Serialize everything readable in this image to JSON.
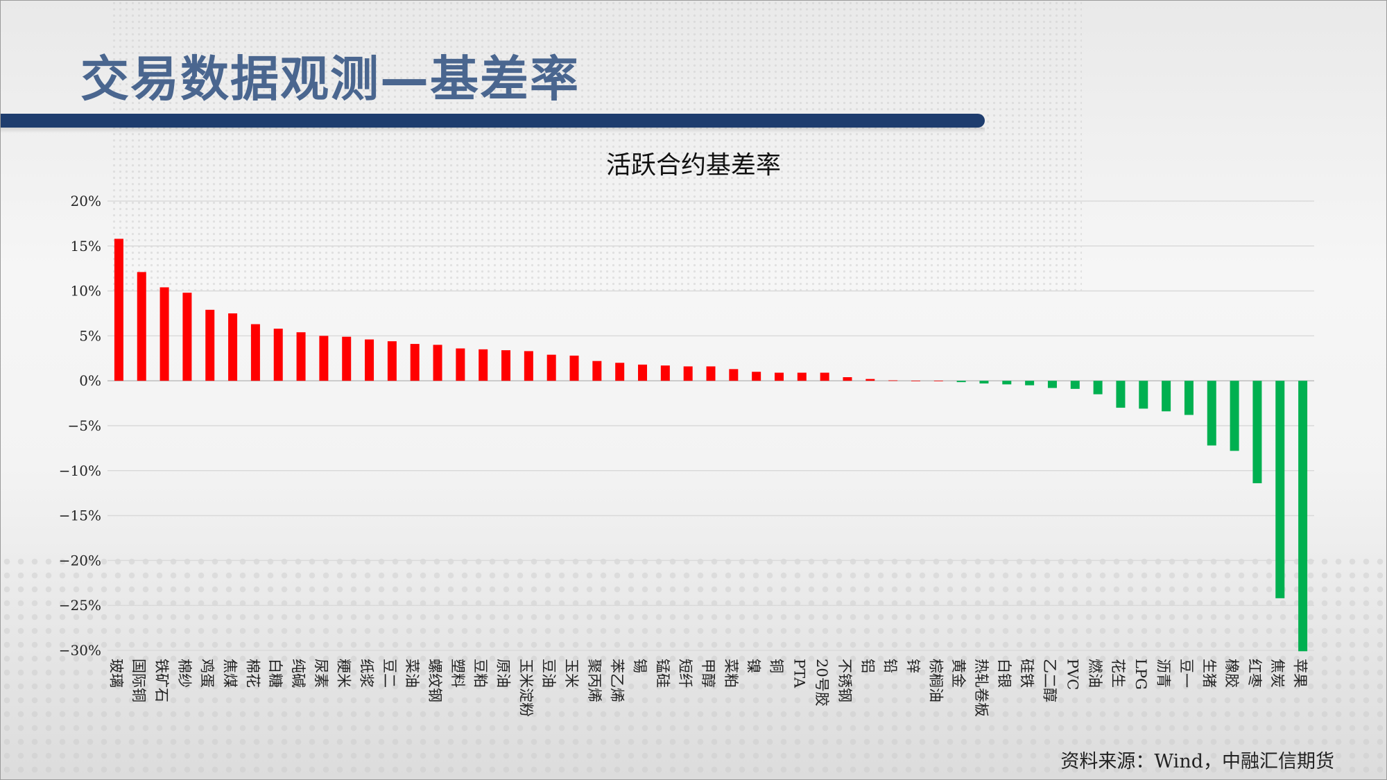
{
  "header": {
    "title": "交易数据观测—基差率"
  },
  "source": "资料来源：Wind，中融汇信期货",
  "colors": {
    "positive": "#ff0000",
    "negative": "#00b050",
    "title": "#4a668f",
    "bar": "#1e3d6e"
  },
  "chart_data": {
    "type": "bar",
    "title": "活跃合约基差率",
    "xlabel": "",
    "ylabel": "",
    "ylim": [
      -30,
      20
    ],
    "yticks": [
      20,
      15,
      10,
      5,
      0,
      -5,
      -10,
      -15,
      -20,
      -25,
      -30
    ],
    "ytick_labels": [
      "20%",
      "15%",
      "10%",
      "5%",
      "0%",
      "−5%",
      "−10%",
      "−15%",
      "−20%",
      "−25%",
      "−30%"
    ],
    "grid": true,
    "legend": "none",
    "categories": [
      "玻璃",
      "国际铜",
      "铁矿石",
      "棉纱",
      "鸡蛋",
      "焦煤",
      "棉花",
      "白糖",
      "纯碱",
      "尿素",
      "粳米",
      "纸浆",
      "豆二",
      "菜油",
      "螺纹钢",
      "塑料",
      "豆粕",
      "原油",
      "玉米淀粉",
      "豆油",
      "玉米",
      "聚丙烯",
      "苯乙烯",
      "锡",
      "锰硅",
      "短纤",
      "甲醇",
      "菜粕",
      "镍",
      "铜",
      "PTA",
      "20号胶",
      "不锈钢",
      "铝",
      "铅",
      "锌",
      "棕榈油",
      "黄金",
      "热轧卷板",
      "白银",
      "硅铁",
      "乙二醇",
      "PVC",
      "燃油",
      "花生",
      "LPG",
      "沥青",
      "豆一",
      "生猪",
      "橡胶",
      "红枣",
      "焦炭",
      "苹果"
    ],
    "values": [
      15.8,
      12.1,
      10.4,
      9.8,
      7.9,
      7.5,
      6.3,
      5.8,
      5.4,
      5.0,
      4.9,
      4.6,
      4.4,
      4.1,
      4.0,
      3.6,
      3.5,
      3.4,
      3.3,
      2.9,
      2.8,
      2.2,
      2.0,
      1.8,
      1.7,
      1.6,
      1.6,
      1.3,
      1.0,
      0.9,
      0.9,
      0.9,
      0.4,
      0.2,
      0.05,
      0.0,
      0.0,
      -0.15,
      -0.3,
      -0.4,
      -0.5,
      -0.8,
      -0.9,
      -1.5,
      -3.0,
      -3.1,
      -3.4,
      -3.8,
      -7.2,
      -7.8,
      -11.4,
      -24.2,
      -30.1
    ]
  }
}
